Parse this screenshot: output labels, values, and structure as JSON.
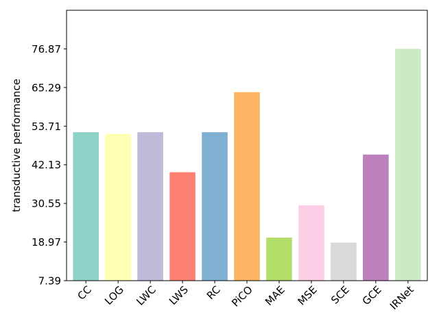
{
  "chart_data": {
    "type": "bar",
    "title": "",
    "xlabel": "",
    "ylabel": "transductive performance",
    "categories": [
      "CC",
      "LOG",
      "LWC",
      "LWS",
      "RC",
      "PiCO",
      "MAE",
      "MSE",
      "SCE",
      "GCE",
      "IRNet"
    ],
    "values": [
      51.9,
      51.4,
      51.9,
      39.9,
      51.9,
      63.9,
      20.3,
      30.0,
      18.8,
      45.2,
      76.9
    ],
    "colors": [
      "#8dd3c7",
      "#ffffb3",
      "#bebada",
      "#fb8072",
      "#80b1d3",
      "#fdb462",
      "#b3de69",
      "#fccde5",
      "#d9d9d9",
      "#bc80bd",
      "#ccebc5"
    ],
    "yticks": [
      7.39,
      18.97,
      30.55,
      42.13,
      53.71,
      65.29,
      76.87
    ],
    "ytick_labels": [
      "7.39",
      "18.97",
      "30.55",
      "42.13",
      "53.71",
      "65.29",
      "76.87"
    ],
    "ylim": [
      7.39,
      88.45
    ],
    "grid": false,
    "legend": "none"
  }
}
